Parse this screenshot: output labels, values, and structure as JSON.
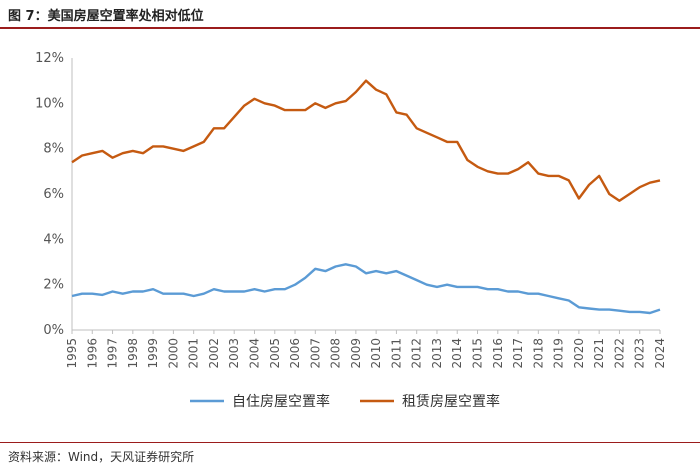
{
  "title": "图 7：美国房屋空置率处相对低位",
  "source": "资料来源：Wind，天风证券研究所",
  "colors": {
    "owner": "#5b9bd5",
    "rental": "#c55a11",
    "rule": "#9b1c1c"
  },
  "chart_data": {
    "type": "line",
    "title": "",
    "xlabel": "",
    "ylabel": "",
    "ylim": [
      0,
      12
    ],
    "xlim": [
      1995,
      2024
    ],
    "yticks": [
      "0%",
      "2%",
      "4%",
      "6%",
      "8%",
      "10%",
      "12%"
    ],
    "xticks": [
      "1995",
      "1996",
      "1997",
      "1998",
      "1999",
      "2000",
      "2001",
      "2002",
      "2003",
      "2004",
      "2005",
      "2006",
      "2007",
      "2008",
      "2009",
      "2010",
      "2011",
      "2012",
      "2013",
      "2014",
      "2015",
      "2016",
      "2017",
      "2018",
      "2019",
      "2020",
      "2021",
      "2022",
      "2023",
      "2024"
    ],
    "grid": false,
    "legend": "bottom",
    "series": [
      {
        "name": "自住房屋空置率",
        "x": [
          1995,
          1995.5,
          1996,
          1996.5,
          1997,
          1997.5,
          1998,
          1998.5,
          1999,
          1999.5,
          2000,
          2000.5,
          2001,
          2001.5,
          2002,
          2002.5,
          2003,
          2003.5,
          2004,
          2004.5,
          2005,
          2005.5,
          2006,
          2006.5,
          2007,
          2007.5,
          2008,
          2008.5,
          2009,
          2009.5,
          2010,
          2010.5,
          2011,
          2011.5,
          2012,
          2012.5,
          2013,
          2013.5,
          2014,
          2014.5,
          2015,
          2015.5,
          2016,
          2016.5,
          2017,
          2017.5,
          2018,
          2018.5,
          2019,
          2019.5,
          2020,
          2020.5,
          2021,
          2021.5,
          2022,
          2022.5,
          2023,
          2023.5,
          2024
        ],
        "values": [
          1.5,
          1.6,
          1.6,
          1.55,
          1.7,
          1.6,
          1.7,
          1.7,
          1.8,
          1.6,
          1.6,
          1.6,
          1.5,
          1.6,
          1.8,
          1.7,
          1.7,
          1.7,
          1.8,
          1.7,
          1.8,
          1.8,
          2.0,
          2.3,
          2.7,
          2.6,
          2.8,
          2.9,
          2.8,
          2.5,
          2.6,
          2.5,
          2.6,
          2.4,
          2.2,
          2.0,
          1.9,
          2.0,
          1.9,
          1.9,
          1.9,
          1.8,
          1.8,
          1.7,
          1.7,
          1.6,
          1.6,
          1.5,
          1.4,
          1.3,
          1.0,
          0.95,
          0.9,
          0.9,
          0.85,
          0.8,
          0.8,
          0.75,
          0.9
        ]
      },
      {
        "name": "租赁房屋空置率",
        "x": [
          1995,
          1995.5,
          1996,
          1996.5,
          1997,
          1997.5,
          1998,
          1998.5,
          1999,
          1999.5,
          2000,
          2000.5,
          2001,
          2001.5,
          2002,
          2002.5,
          2003,
          2003.5,
          2004,
          2004.5,
          2005,
          2005.5,
          2006,
          2006.5,
          2007,
          2007.5,
          2008,
          2008.5,
          2009,
          2009.5,
          2010,
          2010.5,
          2011,
          2011.5,
          2012,
          2012.5,
          2013,
          2013.5,
          2014,
          2014.5,
          2015,
          2015.5,
          2016,
          2016.5,
          2017,
          2017.5,
          2018,
          2018.5,
          2019,
          2019.5,
          2020,
          2020.5,
          2021,
          2021.5,
          2022,
          2022.5,
          2023,
          2023.5,
          2024
        ],
        "values": [
          7.4,
          7.7,
          7.8,
          7.9,
          7.6,
          7.8,
          7.9,
          7.8,
          8.1,
          8.1,
          8.0,
          7.9,
          8.1,
          8.3,
          8.9,
          8.9,
          9.4,
          9.9,
          10.2,
          10.0,
          9.9,
          9.7,
          9.7,
          9.7,
          10.0,
          9.8,
          10.0,
          10.1,
          10.5,
          11.0,
          10.6,
          10.4,
          9.6,
          9.5,
          8.9,
          8.7,
          8.5,
          8.3,
          8.3,
          7.5,
          7.2,
          7.0,
          6.9,
          6.9,
          7.1,
          7.4,
          6.9,
          6.8,
          6.8,
          6.6,
          5.8,
          6.4,
          6.8,
          6.0,
          5.7,
          6.0,
          6.3,
          6.5,
          6.6
        ]
      }
    ]
  }
}
